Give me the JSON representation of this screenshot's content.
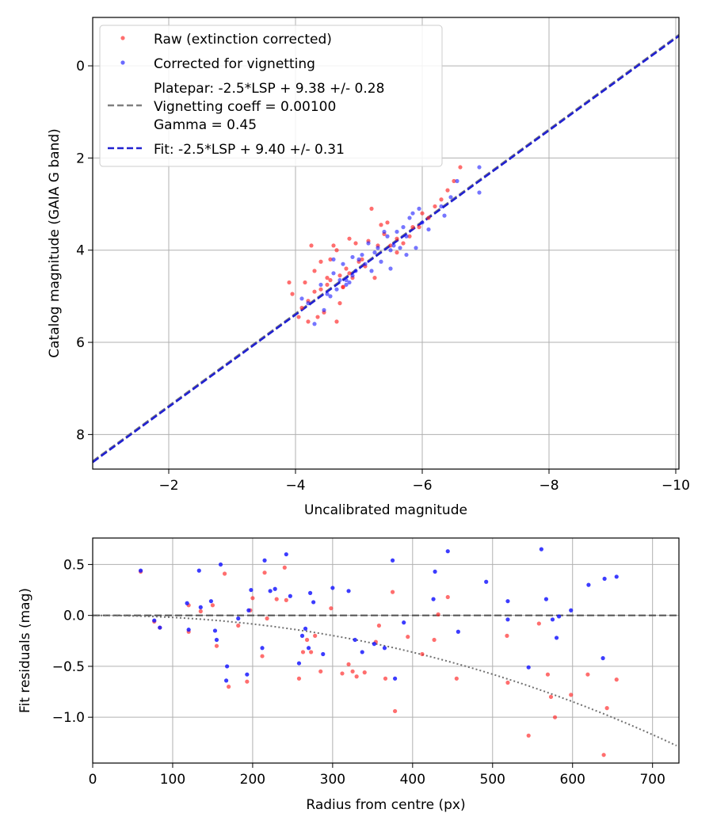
{
  "colors": {
    "raw": "#ff2020",
    "corrected": "#1a1aff",
    "platepar_line": "#808080",
    "fit_line": "#2020d0",
    "model": "#707070"
  },
  "chart_data": [
    {
      "type": "scatter",
      "title": "",
      "xlabel": "Uncalibrated magnitude",
      "ylabel": "Catalog magnitude (GAIA G band)",
      "xlim": [
        -0.8,
        -10.05
      ],
      "ylim": [
        8.75,
        -1.05
      ],
      "xticks": [
        -2,
        -4,
        -6,
        -8,
        -10
      ],
      "xtick_labels": [
        "−2",
        "−4",
        "−6",
        "−8",
        "−10"
      ],
      "yticks": [
        0,
        2,
        4,
        6,
        8
      ],
      "ytick_labels": [
        "0",
        "2",
        "4",
        "6",
        "8"
      ],
      "grid": true,
      "legend_position": "top-left",
      "legend": {
        "raw": "Raw (extinction corrected)",
        "corrected": "Corrected for vignetting",
        "platepar": [
          "Platepar: -2.5*LSP + 9.38 +/- 0.28",
          "Vignetting coeff = 0.00100",
          "Gamma = 0.45"
        ],
        "fit": "Fit: -2.5*LSP + 9.40 +/- 0.31"
      },
      "lines": [
        {
          "name": "Platepar",
          "intercept": 9.38,
          "slope": 1.0
        },
        {
          "name": "Fit",
          "intercept": 9.4,
          "slope": 1.0
        }
      ],
      "series": [
        {
          "name": "Raw (extinction corrected)",
          "x": [
            -6.6,
            -6.5,
            -6.4,
            -6.3,
            -6.2,
            -6.1,
            -6.0,
            -5.95,
            -5.8,
            -5.7,
            -5.6,
            -5.5,
            -5.45,
            -5.35,
            -5.3,
            -5.2,
            -5.15,
            -5.1,
            -5.05,
            -5.0,
            -4.95,
            -4.9,
            -4.85,
            -4.8,
            -4.75,
            -4.7,
            -4.7,
            -4.65,
            -4.6,
            -4.55,
            -4.5,
            -4.5,
            -4.45,
            -4.4,
            -4.35,
            -4.3,
            -4.25,
            -4.2,
            -4.15,
            -4.1,
            -4.05,
            -3.95,
            -3.9,
            -5.25,
            -5.6,
            -4.75,
            -4.4,
            -4.3,
            -4.85,
            -5.85,
            -5.4,
            -4.55,
            -4.65,
            -4.2
          ],
          "y": [
            2.2,
            2.5,
            2.7,
            2.9,
            3.05,
            3.3,
            3.2,
            3.5,
            3.7,
            3.85,
            3.75,
            3.9,
            3.4,
            3.45,
            3.9,
            3.1,
            3.8,
            4.35,
            4.2,
            4.25,
            3.85,
            4.6,
            3.75,
            4.4,
            4.8,
            5.15,
            4.55,
            4.0,
            3.9,
            4.65,
            4.6,
            4.75,
            5.35,
            4.85,
            5.45,
            4.9,
            3.9,
            5.1,
            4.7,
            5.25,
            5.45,
            4.95,
            4.7,
            4.6,
            4.05,
            4.8,
            4.25,
            4.45,
            4.5,
            3.5,
            3.65,
            4.2,
            5.55,
            5.55
          ]
        },
        {
          "name": "Corrected for vignetting",
          "x": [
            -6.9,
            -6.9,
            -6.55,
            -6.45,
            -6.35,
            -6.3,
            -6.1,
            -6.0,
            -5.95,
            -5.85,
            -5.8,
            -5.75,
            -5.7,
            -5.65,
            -5.6,
            -5.55,
            -5.5,
            -5.45,
            -5.4,
            -5.35,
            -5.3,
            -5.25,
            -5.2,
            -5.15,
            -5.1,
            -5.05,
            -5.0,
            -4.95,
            -4.9,
            -4.85,
            -4.8,
            -4.75,
            -4.7,
            -4.65,
            -4.6,
            -4.55,
            -4.5,
            -4.45,
            -4.4,
            -4.3,
            -4.2,
            -4.1,
            -5.75,
            -5.5,
            -4.9,
            -4.6,
            -5.9,
            -4.8
          ],
          "y": [
            2.2,
            2.75,
            2.5,
            2.85,
            3.25,
            3.05,
            3.55,
            3.4,
            3.1,
            3.2,
            3.3,
            3.7,
            3.5,
            3.95,
            3.6,
            3.9,
            4.0,
            3.7,
            3.6,
            4.25,
            3.95,
            4.05,
            4.45,
            3.85,
            4.3,
            4.1,
            4.2,
            4.45,
            4.55,
            4.7,
            4.75,
            4.3,
            4.65,
            4.85,
            4.5,
            5.0,
            4.95,
            5.3,
            4.75,
            5.6,
            5.15,
            5.05,
            4.1,
            4.4,
            4.15,
            4.2,
            3.95,
            4.65
          ]
        }
      ]
    },
    {
      "type": "scatter",
      "title": "",
      "xlabel": "Radius from centre (px)",
      "ylabel": "Fit residuals (mag)",
      "xlim": [
        0,
        733
      ],
      "ylim": [
        -1.45,
        0.76
      ],
      "xticks": [
        0,
        100,
        200,
        300,
        400,
        500,
        600,
        700
      ],
      "xtick_labels": [
        "0",
        "100",
        "200",
        "300",
        "400",
        "500",
        "600",
        "700"
      ],
      "yticks": [
        0.5,
        0.0,
        -0.5,
        -1.0
      ],
      "ytick_labels": [
        "0.5",
        "0.0",
        "−0.5",
        "−1.0"
      ],
      "grid": true,
      "reference_line": 0.0,
      "model_curve": {
        "coeff": 0.001,
        "note": "vignetting model"
      },
      "series": [
        {
          "name": "Raw (extinction corrected)",
          "x": [
            60,
            77,
            84,
            120,
            120,
            135,
            150,
            155,
            165,
            170,
            182,
            193,
            197,
            200,
            212,
            215,
            218,
            230,
            240,
            242,
            258,
            263,
            268,
            273,
            278,
            285,
            298,
            312,
            320,
            325,
            330,
            340,
            354,
            358,
            366,
            375,
            378,
            394,
            412,
            427,
            432,
            444,
            455,
            518,
            519,
            545,
            558,
            569,
            573,
            578,
            598,
            619,
            639,
            643,
            655
          ],
          "y": [
            0.43,
            -0.06,
            -0.12,
            0.1,
            -0.16,
            0.04,
            0.1,
            -0.3,
            0.41,
            -0.7,
            -0.1,
            -0.65,
            0.05,
            0.17,
            -0.4,
            0.42,
            -0.03,
            0.16,
            0.47,
            0.15,
            -0.62,
            -0.36,
            -0.24,
            -0.36,
            -0.2,
            -0.55,
            0.07,
            -0.57,
            -0.48,
            -0.55,
            -0.6,
            -0.56,
            -0.26,
            -0.1,
            -0.62,
            0.23,
            -0.94,
            -0.21,
            -0.38,
            -0.24,
            0.01,
            0.18,
            -0.62,
            -0.2,
            -0.66,
            -1.18,
            -0.08,
            -0.58,
            -0.8,
            -1.0,
            -0.78,
            -0.58,
            -1.37,
            -0.91,
            -0.63
          ]
        },
        {
          "name": "Corrected for vignetting",
          "x": [
            60,
            77,
            84,
            118,
            120,
            133,
            135,
            148,
            153,
            155,
            160,
            167,
            168,
            182,
            193,
            195,
            198,
            212,
            215,
            222,
            228,
            242,
            247,
            258,
            262,
            266,
            270,
            272,
            276,
            288,
            300,
            320,
            328,
            337,
            352,
            365,
            375,
            378,
            389,
            426,
            428,
            444,
            457,
            492,
            519,
            519,
            545,
            561,
            567,
            575,
            580,
            583,
            598,
            620,
            638,
            640,
            655
          ],
          "y": [
            0.44,
            -0.05,
            -0.12,
            0.12,
            -0.14,
            0.44,
            0.08,
            0.14,
            -0.15,
            -0.24,
            0.5,
            -0.64,
            -0.5,
            -0.03,
            -0.58,
            0.05,
            0.25,
            -0.32,
            0.54,
            0.24,
            0.26,
            0.6,
            0.19,
            -0.47,
            -0.2,
            -0.13,
            -0.32,
            0.22,
            0.13,
            -0.38,
            0.27,
            0.24,
            -0.24,
            -0.36,
            -0.28,
            -0.32,
            0.54,
            -0.62,
            -0.07,
            0.16,
            0.43,
            0.63,
            -0.16,
            0.33,
            -0.04,
            0.14,
            -0.51,
            0.65,
            0.16,
            -0.04,
            -0.22,
            -0.01,
            0.05,
            0.3,
            -0.42,
            0.36,
            0.38
          ]
        }
      ]
    }
  ]
}
